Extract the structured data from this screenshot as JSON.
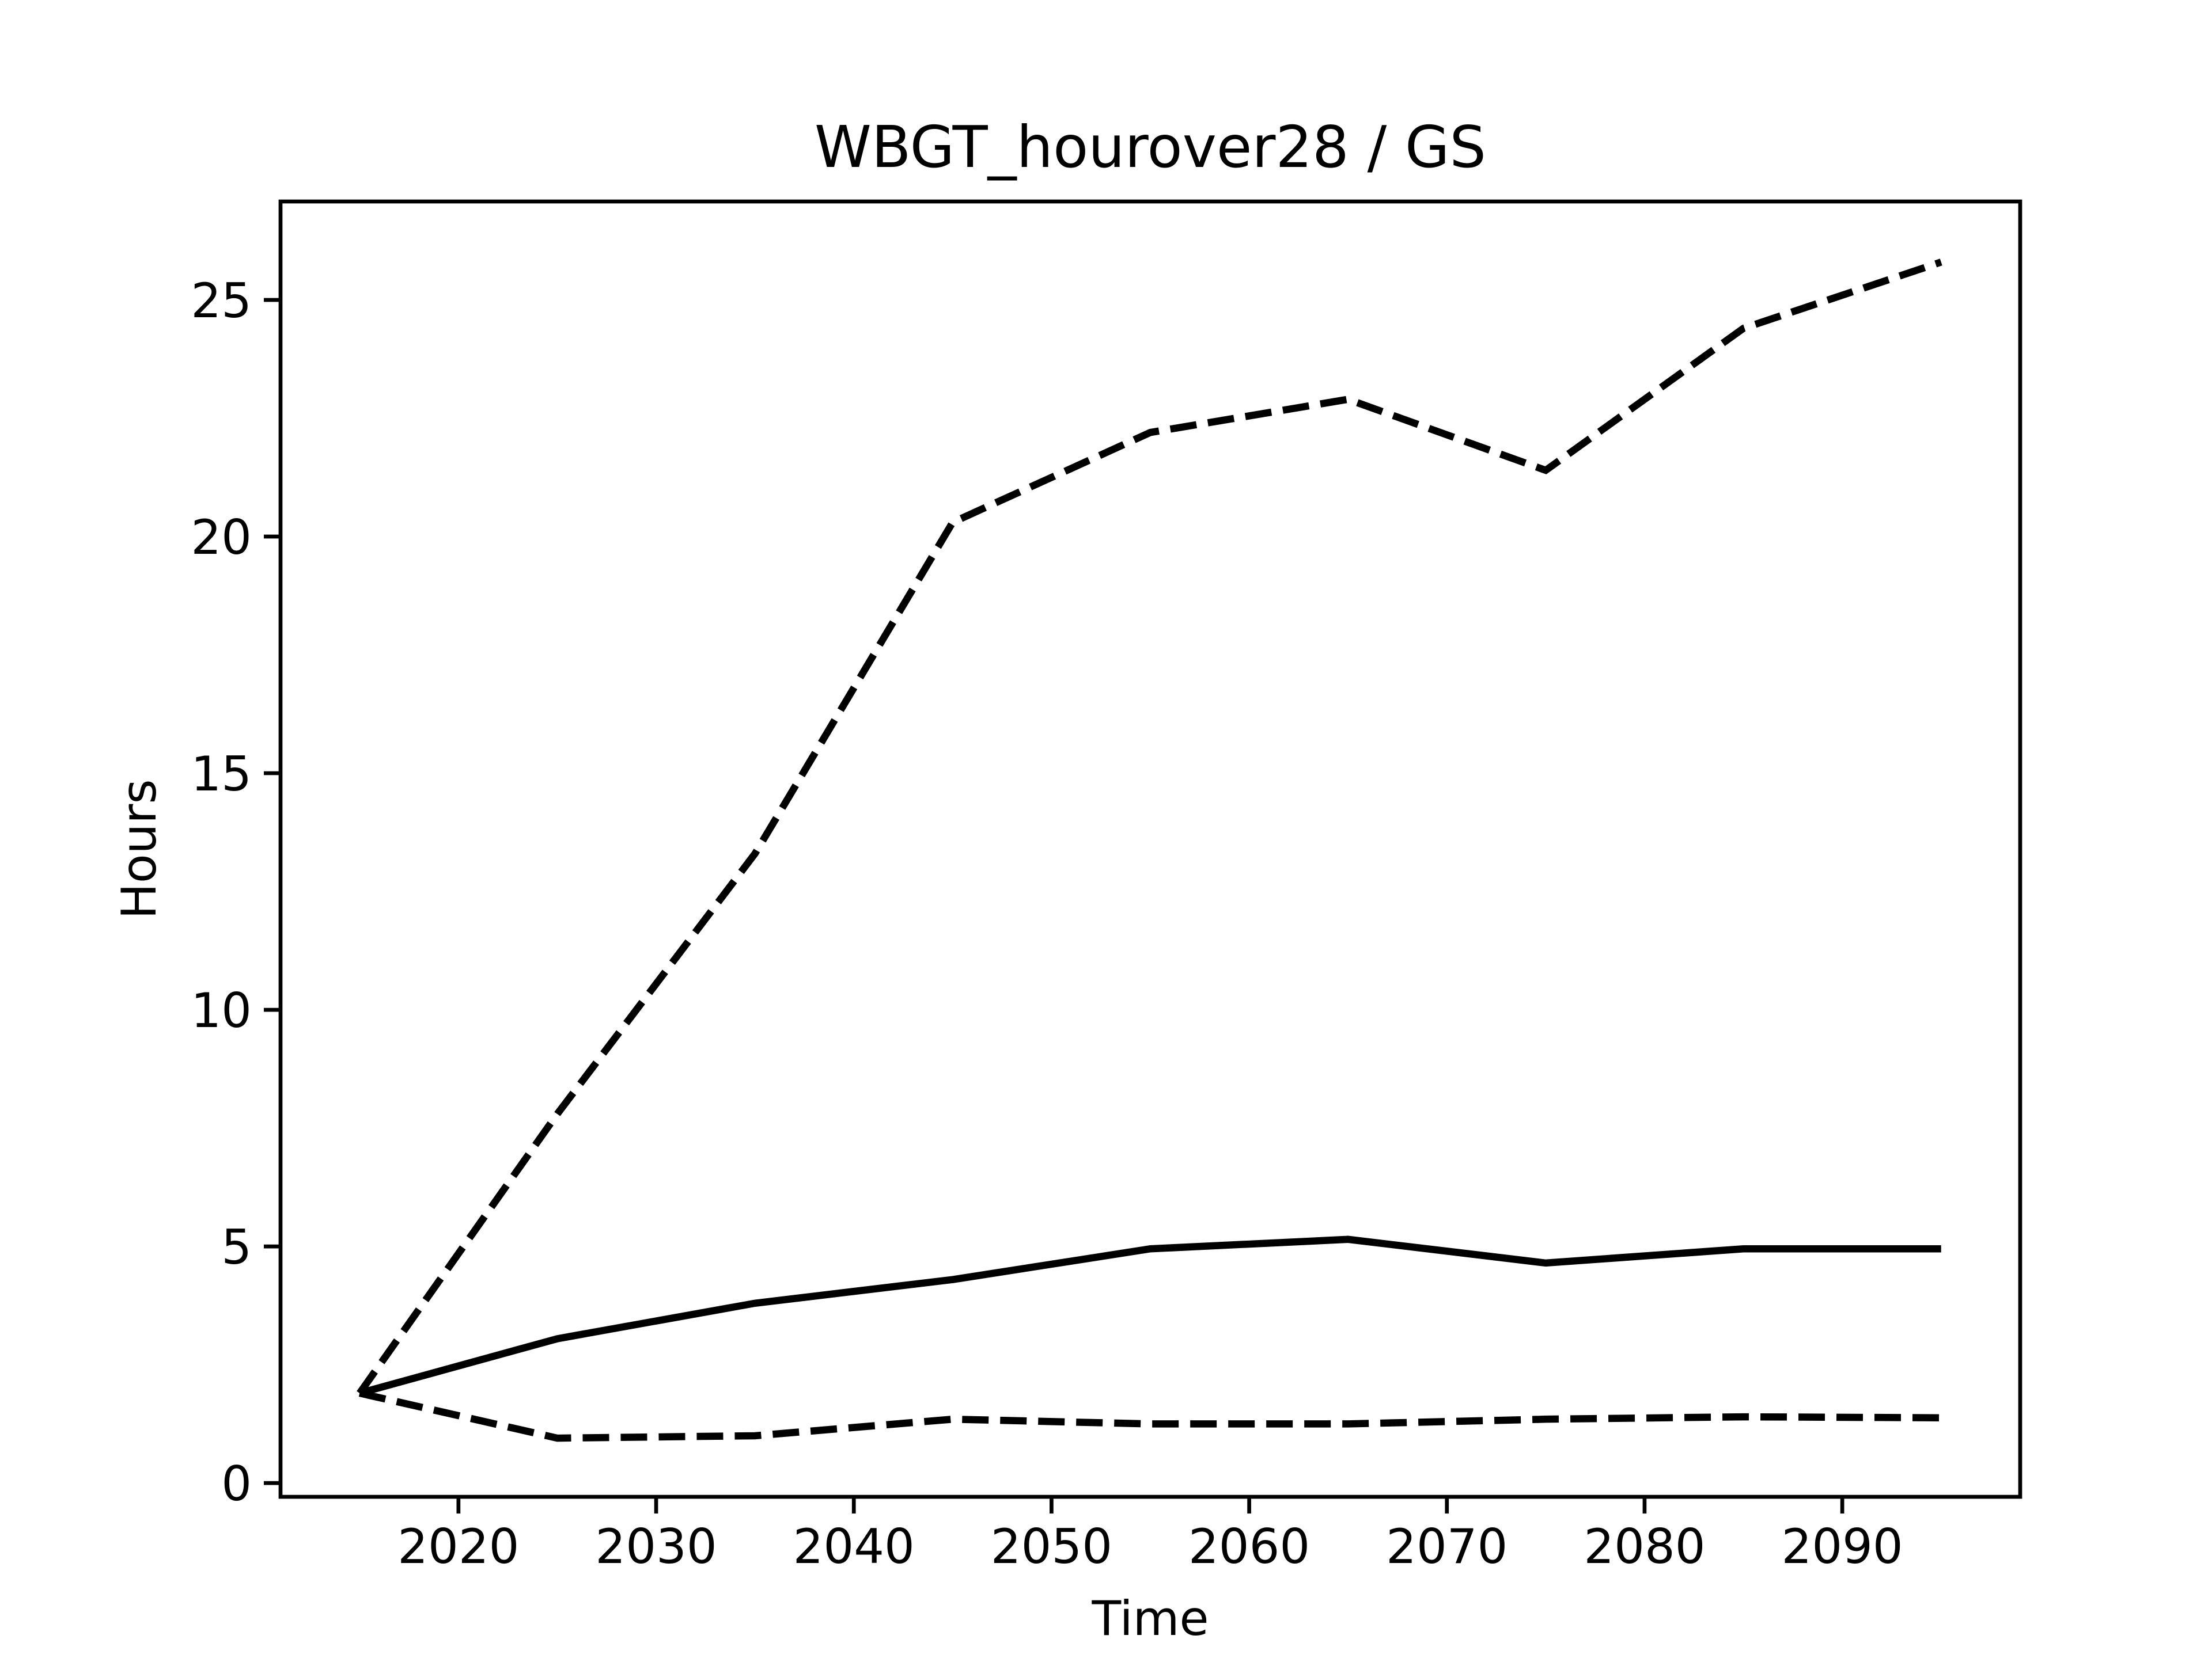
{
  "chart_data": {
    "type": "line",
    "title": "WBGT_hourover28 / GS",
    "xlabel": "Time",
    "ylabel": "Hours",
    "x": [
      2015,
      2025,
      2035,
      2045,
      2055,
      2065,
      2075,
      2085,
      2095
    ],
    "series": [
      {
        "color": "#000000",
        "dashed": true,
        "values": [
          1.9,
          7.8,
          13.3,
          20.3,
          22.2,
          22.9,
          21.4,
          24.4,
          25.8
        ]
      },
      {
        "color": "#000000",
        "dashed": false,
        "values": [
          1.9,
          3.05,
          3.8,
          4.3,
          4.95,
          5.15,
          4.65,
          4.95,
          4.95
        ]
      },
      {
        "color": "#000000",
        "dashed": true,
        "values": [
          1.9,
          0.95,
          1.0,
          1.35,
          1.25,
          1.25,
          1.35,
          1.4,
          1.38
        ]
      }
    ],
    "xlim": [
      2011,
      2099
    ],
    "xticks": [
      2020,
      2030,
      2040,
      2050,
      2060,
      2070,
      2080,
      2090
    ],
    "ylim": [
      -0.29,
      27.08
    ],
    "yticks": [
      0,
      5,
      10,
      15,
      20,
      25
    ],
    "grid": false
  }
}
